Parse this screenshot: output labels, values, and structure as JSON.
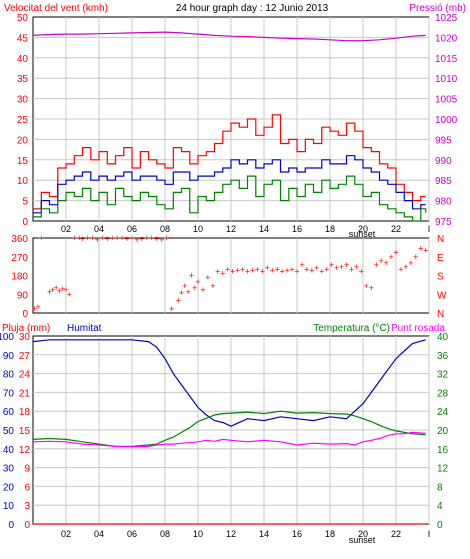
{
  "title": "24 hour graph day : 12 Junio 2013",
  "x_ticks": [
    "02",
    "04",
    "06",
    "08",
    "10",
    "12",
    "14",
    "16",
    "18",
    "20",
    "22",
    "I"
  ],
  "sunset_label": "sunset",
  "colors": {
    "wind": "#ff0000",
    "gust": "#ff0000",
    "avg": "#0000cc",
    "min": "#008000",
    "pressure": "#cc00cc",
    "direction": "#ff0000",
    "rain": "#ff0000",
    "humidity": "#0000cc",
    "temperature": "#008000",
    "dewpoint": "#ff00ff",
    "grid": "#c8c8c8",
    "frame": "#000000",
    "bg": "#ffffff"
  },
  "chart_data": [
    {
      "type": "line",
      "title": "24 hour graph day : 12 Junio 2013",
      "left_axis_label": "Velocitat del vent (kmh)",
      "right_axis_label": "Pressió (mb)",
      "left_ticks": [
        0,
        5,
        10,
        15,
        20,
        25,
        30,
        35,
        40,
        45,
        50
      ],
      "right_ticks": [
        975,
        980,
        985,
        990,
        995,
        1000,
        1005,
        1010,
        1015,
        1020,
        1025
      ],
      "left_range": [
        0,
        50
      ],
      "right_range": [
        975,
        1025
      ],
      "x_range": [
        0,
        24
      ],
      "series": [
        {
          "axis": "right",
          "color_key": "pressure",
          "x": [
            0,
            1,
            2,
            3,
            4,
            5,
            6,
            7,
            8,
            9,
            10,
            11,
            12,
            13,
            14,
            15,
            16,
            17,
            18,
            19,
            20,
            21,
            22,
            23,
            23.8
          ],
          "y": [
            1020.5,
            1020.7,
            1020.8,
            1020.8,
            1020.9,
            1021.0,
            1021.1,
            1021.2,
            1021.3,
            1021.1,
            1020.8,
            1020.5,
            1020.3,
            1020.2,
            1020.0,
            1019.8,
            1019.7,
            1019.6,
            1019.4,
            1019.2,
            1019.2,
            1019.4,
            1019.8,
            1020.3,
            1020.5
          ]
        },
        {
          "axis": "left",
          "color_key": "gust",
          "x": [
            0,
            0.5,
            1,
            1.5,
            2,
            2.5,
            3,
            3.5,
            4,
            4.5,
            5,
            5.5,
            6,
            6.5,
            7,
            7.5,
            8,
            8.5,
            9,
            9.5,
            10,
            10.5,
            11,
            11.5,
            12,
            12.5,
            13,
            13.5,
            14,
            14.5,
            15,
            15.5,
            16,
            16.5,
            17,
            17.5,
            18,
            18.5,
            19,
            19.5,
            20,
            20.5,
            21,
            21.5,
            22,
            22.5,
            23,
            23.5,
            23.8
          ],
          "y": [
            3,
            7,
            6,
            13,
            14,
            16,
            18,
            15,
            17,
            14,
            16,
            18,
            13,
            17,
            15,
            14,
            13,
            18,
            17,
            14,
            16,
            17,
            19,
            22,
            24,
            23,
            25,
            21,
            23,
            26,
            19,
            20,
            17,
            20,
            19,
            23,
            22,
            21,
            24,
            22,
            18,
            17,
            14,
            13,
            9,
            7,
            5,
            6,
            6
          ]
        },
        {
          "axis": "left",
          "color_key": "avg",
          "x": [
            0,
            0.5,
            1,
            1.5,
            2,
            2.5,
            3,
            3.5,
            4,
            4.5,
            5,
            5.5,
            6,
            6.5,
            7,
            7.5,
            8,
            8.5,
            9,
            9.5,
            10,
            10.5,
            11,
            11.5,
            12,
            12.5,
            13,
            13.5,
            14,
            14.5,
            15,
            15.5,
            16,
            16.5,
            17,
            17.5,
            18,
            18.5,
            19,
            19.5,
            20,
            20.5,
            21,
            21.5,
            22,
            22.5,
            23,
            23.5,
            23.8
          ],
          "y": [
            2,
            5,
            4,
            9,
            10,
            11,
            12,
            10,
            11,
            10,
            11,
            12,
            10,
            11,
            11,
            10,
            9,
            12,
            12,
            10,
            11,
            11,
            12,
            13,
            15,
            14,
            15,
            13,
            14,
            15,
            12,
            13,
            12,
            13,
            13,
            15,
            14,
            14,
            16,
            15,
            13,
            12,
            10,
            9,
            7,
            5,
            3,
            4,
            4
          ]
        },
        {
          "axis": "left",
          "color_key": "min",
          "x": [
            0,
            0.5,
            1,
            1.5,
            2,
            2.5,
            3,
            3.5,
            4,
            4.5,
            5,
            5.5,
            6,
            6.5,
            7,
            7.5,
            8,
            8.5,
            9,
            9.5,
            10,
            10.5,
            11,
            11.5,
            12,
            12.5,
            13,
            13.5,
            14,
            14.5,
            15,
            15.5,
            16,
            16.5,
            17,
            17.5,
            18,
            18.5,
            19,
            19.5,
            20,
            20.5,
            21,
            21.5,
            22,
            22.5,
            23,
            23.5,
            23.8
          ],
          "y": [
            1,
            3,
            2,
            5,
            7,
            6,
            8,
            5,
            7,
            4,
            8,
            6,
            5,
            7,
            6,
            4,
            3,
            7,
            8,
            2,
            6,
            5,
            7,
            9,
            10,
            8,
            11,
            6,
            9,
            10,
            5,
            8,
            6,
            9,
            7,
            10,
            8,
            9,
            11,
            9,
            6,
            7,
            4,
            3,
            2,
            1,
            0,
            3,
            2
          ]
        }
      ]
    },
    {
      "type": "scatter",
      "title": "",
      "left_ticks": [
        0,
        90,
        180,
        270,
        360
      ],
      "right_ticks": [
        "N",
        "E",
        "S",
        "W",
        "N"
      ],
      "y_range": [
        0,
        360
      ],
      "x_range": [
        0,
        24
      ],
      "points_x": [
        0.1,
        0.3,
        0.5,
        1.0,
        1.2,
        1.4,
        1.6,
        1.8,
        2.0,
        2.2,
        2.5,
        2.8,
        3.0,
        3.3,
        3.6,
        3.9,
        4.2,
        4.5,
        4.8,
        5.1,
        5.4,
        5.7,
        6.0,
        6.3,
        6.6,
        6.9,
        7.2,
        7.5,
        7.8,
        8.1,
        8.4,
        8.8,
        9.0,
        9.2,
        9.4,
        9.6,
        9.8,
        10.0,
        10.3,
        10.6,
        10.9,
        11.2,
        11.5,
        11.8,
        12.1,
        12.4,
        12.7,
        13.0,
        13.3,
        13.6,
        13.9,
        14.2,
        14.5,
        14.8,
        15.1,
        15.4,
        15.7,
        16.0,
        16.3,
        16.6,
        16.9,
        17.2,
        17.5,
        17.8,
        18.1,
        18.4,
        18.7,
        19.0,
        19.3,
        19.6,
        19.9,
        20.2,
        20.5,
        20.8,
        21.1,
        21.4,
        21.7,
        22.0,
        22.3,
        22.6,
        22.9,
        23.2,
        23.5,
        23.8
      ],
      "points_y": [
        20,
        30,
        360,
        100,
        110,
        120,
        105,
        115,
        110,
        90,
        360,
        360,
        355,
        360,
        360,
        350,
        360,
        355,
        360,
        360,
        360,
        355,
        360,
        350,
        355,
        360,
        360,
        355,
        350,
        360,
        20,
        60,
        95,
        130,
        100,
        180,
        120,
        150,
        110,
        170,
        130,
        200,
        190,
        210,
        200,
        205,
        210,
        200,
        205,
        210,
        200,
        215,
        205,
        210,
        200,
        205,
        210,
        200,
        230,
        210,
        205,
        215,
        200,
        210,
        230,
        215,
        220,
        230,
        210,
        220,
        200,
        130,
        120,
        230,
        250,
        240,
        270,
        290,
        210,
        220,
        240,
        270,
        310,
        300
      ]
    },
    {
      "type": "line",
      "title": "",
      "left_axis_label": "Pluja (mm)",
      "mid_axis_label": "Humitat",
      "right_axis_label": "Temperatura (°C)",
      "right_axis_label_2": "Punt rosada",
      "left_ticks": [
        0,
        10,
        20,
        30,
        40,
        50,
        60,
        70,
        80,
        90,
        100
      ],
      "left_ticks_2": [
        0,
        3,
        6,
        9,
        12,
        15,
        18,
        21,
        24,
        27,
        30
      ],
      "right_ticks": [
        0,
        4,
        8,
        12,
        16,
        20,
        24,
        28,
        32,
        36,
        40
      ],
      "left_range": [
        0,
        100
      ],
      "right_range": [
        0,
        40
      ],
      "x_range": [
        0,
        24
      ],
      "series": [
        {
          "axis": "left",
          "color_key": "rain",
          "x": [
            0,
            23.8
          ],
          "y": [
            0,
            0
          ]
        },
        {
          "axis": "left",
          "color_key": "humidity",
          "x": [
            0,
            1,
            2,
            3,
            4,
            5,
            6,
            7,
            7.5,
            8,
            8.5,
            9,
            9.5,
            10,
            10.5,
            11,
            11.5,
            12,
            13,
            14,
            15,
            16,
            17,
            18,
            19,
            19.5,
            20,
            20.5,
            21,
            21.5,
            22,
            22.5,
            23,
            23.8
          ],
          "y": [
            97,
            98,
            98,
            98,
            98,
            98,
            98,
            97,
            94,
            88,
            80,
            74,
            68,
            62,
            58,
            55,
            54,
            52,
            56,
            55,
            57,
            56,
            55,
            57,
            56,
            60,
            64,
            70,
            76,
            82,
            88,
            92,
            96,
            98
          ]
        },
        {
          "axis": "right",
          "color_key": "temperature",
          "x": [
            0,
            1,
            2,
            3,
            4,
            5,
            6,
            7,
            7.5,
            8,
            8.5,
            9,
            9.5,
            10,
            10.5,
            11,
            11.5,
            12,
            13,
            14,
            15,
            16,
            17,
            18,
            19,
            19.5,
            20,
            20.5,
            21,
            21.5,
            22,
            22.5,
            23,
            23.8
          ],
          "y": [
            18,
            18.2,
            18,
            17.5,
            17,
            16.5,
            16.5,
            16.8,
            17,
            17.8,
            18.5,
            19.5,
            20.5,
            21.8,
            22.5,
            23.2,
            23.5,
            23.6,
            23.8,
            23.5,
            24,
            23.6,
            23.7,
            23.5,
            23.4,
            23,
            22.4,
            21.8,
            21,
            20.3,
            19.8,
            19.5,
            19.2,
            19
          ]
        },
        {
          "axis": "right",
          "color_key": "dewpoint",
          "x": [
            0,
            1,
            2,
            3,
            4,
            5,
            6,
            7,
            7.5,
            8,
            8.5,
            9,
            9.5,
            10,
            10.5,
            11,
            11.5,
            12,
            13,
            14,
            15,
            16,
            17,
            18,
            19,
            19.5,
            20,
            20.5,
            21,
            21.5,
            22,
            22.5,
            23,
            23.8
          ],
          "y": [
            17.5,
            17.6,
            17.5,
            17,
            16.8,
            16.5,
            16.4,
            16.5,
            16.8,
            17,
            17,
            17.2,
            17.3,
            17.5,
            17.8,
            17.6,
            18,
            17.8,
            17.5,
            17.8,
            17.5,
            16.8,
            17.2,
            17,
            17.1,
            16.8,
            17.5,
            17.8,
            18.2,
            18.8,
            19.2,
            19.2,
            19.5,
            19.3
          ]
        }
      ]
    }
  ]
}
